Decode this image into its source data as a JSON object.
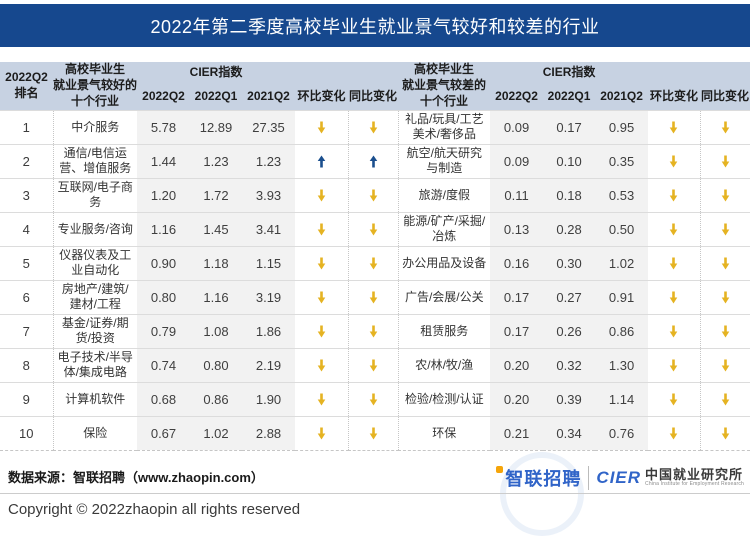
{
  "colors": {
    "title_bar_bg": "#16488E",
    "table_header_bg": "#C7D2E2",
    "value_column_bg": "#F2F2F2",
    "arrow_down": "#E5B322",
    "arrow_up": "#1B4F8E",
    "row_line": "#DCDCDC",
    "dotted_line": "#C6C6C6",
    "zhaopin_blue": "#3064C8",
    "logo_orange": "#F5A50A"
  },
  "chart_data": {
    "type": "table",
    "title": "2022年第二季度高校毕业生就业景气较好和较差的行业",
    "header": {
      "rank": "2022Q2\n排名",
      "good_industries": "高校毕业生\n就业景气较好的\n十个行业",
      "bad_industries": "高校毕业生\n就业景气较差的\n十个行业",
      "cier_group": "CIER指数",
      "col_2022q2": "2022Q2",
      "col_2022q1": "2022Q1",
      "col_2021q2": "2021Q2",
      "mom": "环比变化",
      "yoy": "同比变化"
    },
    "rows": [
      {
        "rank": "1",
        "good": {
          "industry": "中介服务",
          "values": [
            "5.78",
            "12.89",
            "27.35"
          ],
          "mom": "down",
          "yoy": "down"
        },
        "bad": {
          "industry": "礼品/玩具/工艺美术/奢侈品",
          "values": [
            "0.09",
            "0.17",
            "0.95"
          ],
          "mom": "down",
          "yoy": "down"
        }
      },
      {
        "rank": "2",
        "good": {
          "industry": "通信/电信运营、增值服务",
          "values": [
            "1.44",
            "1.23",
            "1.23"
          ],
          "mom": "up",
          "yoy": "up"
        },
        "bad": {
          "industry": "航空/航天研究与制造",
          "values": [
            "0.09",
            "0.10",
            "0.35"
          ],
          "mom": "down",
          "yoy": "down"
        }
      },
      {
        "rank": "3",
        "good": {
          "industry": "互联网/电子商务",
          "values": [
            "1.20",
            "1.72",
            "3.93"
          ],
          "mom": "down",
          "yoy": "down"
        },
        "bad": {
          "industry": "旅游/度假",
          "values": [
            "0.11",
            "0.18",
            "0.53"
          ],
          "mom": "down",
          "yoy": "down"
        }
      },
      {
        "rank": "4",
        "good": {
          "industry": "专业服务/咨询",
          "values": [
            "1.16",
            "1.45",
            "3.41"
          ],
          "mom": "down",
          "yoy": "down"
        },
        "bad": {
          "industry": "能源/矿产/采掘/冶炼",
          "values": [
            "0.13",
            "0.28",
            "0.50"
          ],
          "mom": "down",
          "yoy": "down"
        }
      },
      {
        "rank": "5",
        "good": {
          "industry": "仪器仪表及工业自动化",
          "values": [
            "0.90",
            "1.18",
            "1.15"
          ],
          "mom": "down",
          "yoy": "down"
        },
        "bad": {
          "industry": "办公用品及设备",
          "values": [
            "0.16",
            "0.30",
            "1.02"
          ],
          "mom": "down",
          "yoy": "down"
        }
      },
      {
        "rank": "6",
        "good": {
          "industry": "房地产/建筑/建材/工程",
          "values": [
            "0.80",
            "1.16",
            "3.19"
          ],
          "mom": "down",
          "yoy": "down"
        },
        "bad": {
          "industry": "广告/会展/公关",
          "values": [
            "0.17",
            "0.27",
            "0.91"
          ],
          "mom": "down",
          "yoy": "down"
        }
      },
      {
        "rank": "7",
        "good": {
          "industry": "基金/证券/期货/投资",
          "values": [
            "0.79",
            "1.08",
            "1.86"
          ],
          "mom": "down",
          "yoy": "down"
        },
        "bad": {
          "industry": "租赁服务",
          "values": [
            "0.17",
            "0.26",
            "0.86"
          ],
          "mom": "down",
          "yoy": "down"
        }
      },
      {
        "rank": "8",
        "good": {
          "industry": "电子技术/半导体/集成电路",
          "values": [
            "0.74",
            "0.80",
            "2.19"
          ],
          "mom": "down",
          "yoy": "down"
        },
        "bad": {
          "industry": "农/林/牧/渔",
          "values": [
            "0.20",
            "0.32",
            "1.30"
          ],
          "mom": "down",
          "yoy": "down"
        }
      },
      {
        "rank": "9",
        "good": {
          "industry": "计算机软件",
          "values": [
            "0.68",
            "0.86",
            "1.90"
          ],
          "mom": "down",
          "yoy": "down"
        },
        "bad": {
          "industry": "检验/检测/认证",
          "values": [
            "0.20",
            "0.39",
            "1.14"
          ],
          "mom": "down",
          "yoy": "down"
        }
      },
      {
        "rank": "10",
        "good": {
          "industry": "保险",
          "values": [
            "0.67",
            "1.02",
            "2.88"
          ],
          "mom": "down",
          "yoy": "down"
        },
        "bad": {
          "industry": "环保",
          "values": [
            "0.21",
            "0.34",
            "0.76"
          ],
          "mom": "down",
          "yoy": "down"
        }
      }
    ]
  },
  "footer": {
    "source": "数据来源：智联招聘（www.zhaopin.com）",
    "copyright": "Copyright © 2022zhaopin all rights reserved",
    "logos": {
      "zhaopin": "智联招聘",
      "cier_acronym": "CIER",
      "cier_cn": "中国就业研究所",
      "cier_en": "China Institute for Employment Research"
    }
  }
}
